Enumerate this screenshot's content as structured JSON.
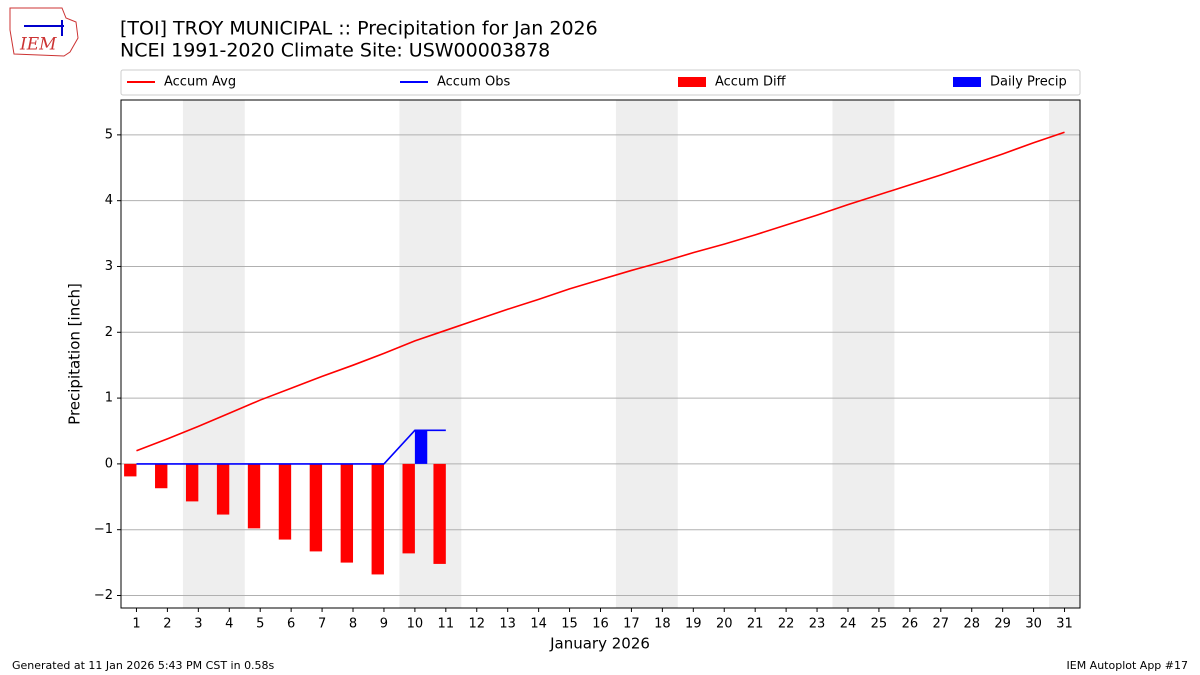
{
  "chart_data": {
    "type": "combo",
    "logo_text": "IEM",
    "title": "[TOI] TROY MUNICIPAL :: Precipitation for Jan 2026",
    "subtitle": "NCEI 1991-2020 Climate Site: USW00003878",
    "y_label": "Precipitation [inch]",
    "x_label": "January 2026",
    "footer_left": "Generated at 11 Jan 2026 5:43 PM CST in 0.58s",
    "footer_right": "IEM Autoplot App #17",
    "x": [
      1,
      2,
      3,
      4,
      5,
      6,
      7,
      8,
      9,
      10,
      11,
      12,
      13,
      14,
      15,
      16,
      17,
      18,
      19,
      20,
      21,
      22,
      23,
      24,
      25,
      26,
      27,
      28,
      29,
      30,
      31
    ],
    "xlim": [
      0.5,
      31.5
    ],
    "xticks": [
      1,
      2,
      3,
      4,
      5,
      6,
      7,
      8,
      9,
      10,
      11,
      12,
      13,
      14,
      15,
      16,
      17,
      18,
      19,
      20,
      21,
      22,
      23,
      24,
      25,
      26,
      27,
      28,
      29,
      30,
      31
    ],
    "ylim": [
      -2.19,
      5.53
    ],
    "yticks": [
      -2,
      -1,
      0,
      1,
      2,
      3,
      4,
      5
    ],
    "grid": true,
    "series": [
      {
        "name": "Accum Avg",
        "type": "line",
        "color": "#ff0000",
        "values": [
          0.2,
          0.38,
          0.57,
          0.77,
          0.97,
          1.15,
          1.33,
          1.5,
          1.68,
          1.87,
          2.03,
          2.19,
          2.35,
          2.5,
          2.66,
          2.8,
          2.94,
          3.07,
          3.21,
          3.34,
          3.48,
          3.63,
          3.78,
          3.94,
          4.09,
          4.24,
          4.39,
          4.55,
          4.71,
          4.88,
          5.04
        ]
      },
      {
        "name": "Accum Obs",
        "type": "line",
        "color": "#0000ff",
        "values": [
          0,
          0,
          0,
          0,
          0,
          0,
          0,
          0,
          0,
          0.51,
          0.51,
          null,
          null,
          null,
          null,
          null,
          null,
          null,
          null,
          null,
          null,
          null,
          null,
          null,
          null,
          null,
          null,
          null,
          null,
          null,
          null
        ]
      },
      {
        "name": "Accum Diff",
        "type": "bar",
        "color": "#ff0000",
        "offset": -0.2,
        "values": [
          -0.19,
          -0.37,
          -0.57,
          -0.77,
          -0.98,
          -1.15,
          -1.33,
          -1.5,
          -1.68,
          -1.36,
          -1.52,
          null,
          null,
          null,
          null,
          null,
          null,
          null,
          null,
          null,
          null,
          null,
          null,
          null,
          null,
          null,
          null,
          null,
          null,
          null,
          null
        ]
      },
      {
        "name": "Daily Precip",
        "type": "bar",
        "color": "#0000ff",
        "offset": 0.2,
        "values": [
          0,
          0,
          0,
          0,
          0,
          0,
          0,
          0,
          0,
          0.51,
          0,
          null,
          null,
          null,
          null,
          null,
          null,
          null,
          null,
          null,
          null,
          null,
          null,
          null,
          null,
          null,
          null,
          null,
          null,
          null,
          null
        ]
      }
    ]
  }
}
